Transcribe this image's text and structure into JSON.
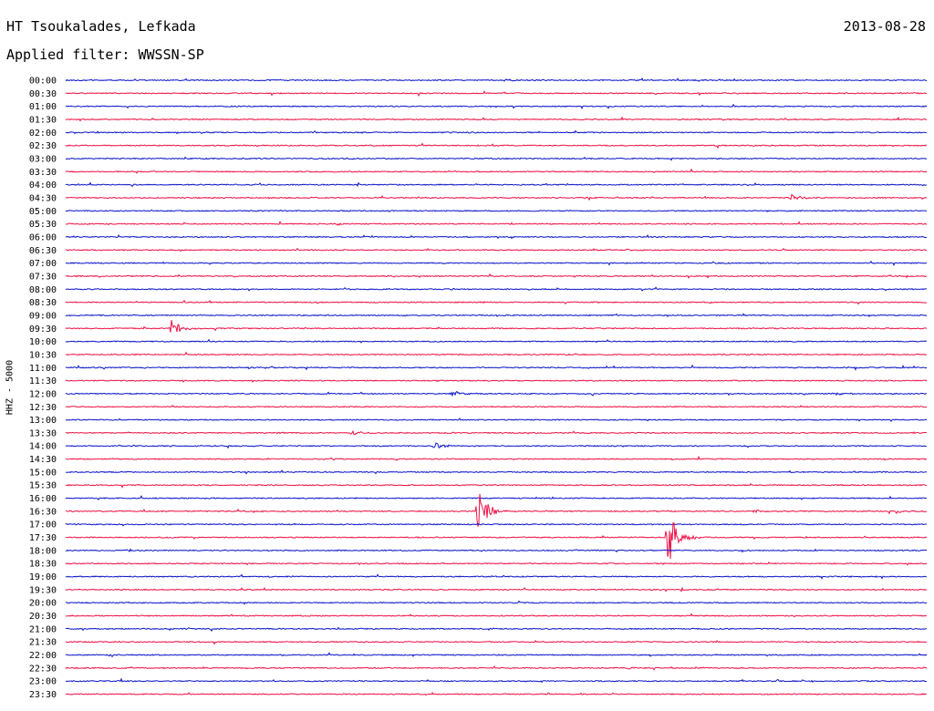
{
  "header": {
    "station": "HT Tsoukalades, Lefkada",
    "date": "2013-08-28",
    "filter_label": "Applied filter: WWSSN-SP"
  },
  "channel_label": "HHZ - 5000",
  "colors": {
    "trace_a": "#0a14c8",
    "trace_b": "#ee1045"
  },
  "chart_data": {
    "type": "line",
    "description": "helicorder",
    "title": "",
    "row_labels": [
      "00:00",
      "00:30",
      "01:00",
      "01:30",
      "02:00",
      "02:30",
      "03:00",
      "03:30",
      "04:00",
      "04:30",
      "05:00",
      "05:30",
      "06:00",
      "06:30",
      "07:00",
      "07:30",
      "08:00",
      "08:30",
      "09:00",
      "09:30",
      "10:00",
      "10:30",
      "11:00",
      "11:30",
      "12:00",
      "12:30",
      "13:00",
      "13:30",
      "14:00",
      "14:30",
      "15:00",
      "15:30",
      "16:00",
      "16:30",
      "17:00",
      "17:30",
      "18:00",
      "18:30",
      "19:00",
      "19:30",
      "20:00",
      "20:30",
      "21:00",
      "21:30",
      "22:00",
      "22:30",
      "23:00",
      "23:30"
    ],
    "row_minutes": 30,
    "events": [
      {
        "row": "00:00",
        "minute": 15.3,
        "amplitude": 1.0
      },
      {
        "row": "02:00",
        "minute": 14.0,
        "amplitude": 0.8
      },
      {
        "row": "04:30",
        "minute": 25.3,
        "amplitude": 3.5
      },
      {
        "row": "06:30",
        "minute": 19.5,
        "amplitude": 0.8
      },
      {
        "row": "08:00",
        "minute": 13.5,
        "amplitude": 0.8
      },
      {
        "row": "08:30",
        "minute": 14.5,
        "amplitude": 0.8
      },
      {
        "row": "09:30",
        "minute": 3.7,
        "amplitude": 11.0
      },
      {
        "row": "12:00",
        "minute": 13.5,
        "amplitude": 3.0
      },
      {
        "row": "12:00",
        "minute": 26.9,
        "amplitude": 1.5
      },
      {
        "row": "13:30",
        "minute": 10.0,
        "amplitude": 2.5
      },
      {
        "row": "13:30",
        "minute": 12.7,
        "amplitude": 1.0
      },
      {
        "row": "14:00",
        "minute": 12.9,
        "amplitude": 4.5
      },
      {
        "row": "16:30",
        "minute": 14.4,
        "amplitude": 25.0
      },
      {
        "row": "16:30",
        "minute": 24.0,
        "amplitude": 2.0
      },
      {
        "row": "16:30",
        "minute": 29.0,
        "amplitude": 2.0
      },
      {
        "row": "17:30",
        "minute": 21.0,
        "amplitude": 35.0
      },
      {
        "row": "18:00",
        "minute": 2.2,
        "amplitude": 1.5
      },
      {
        "row": "22:30",
        "minute": 19.6,
        "amplitude": 1.0
      },
      {
        "row": "23:00",
        "minute": 6.2,
        "amplitude": 0.8
      }
    ]
  }
}
